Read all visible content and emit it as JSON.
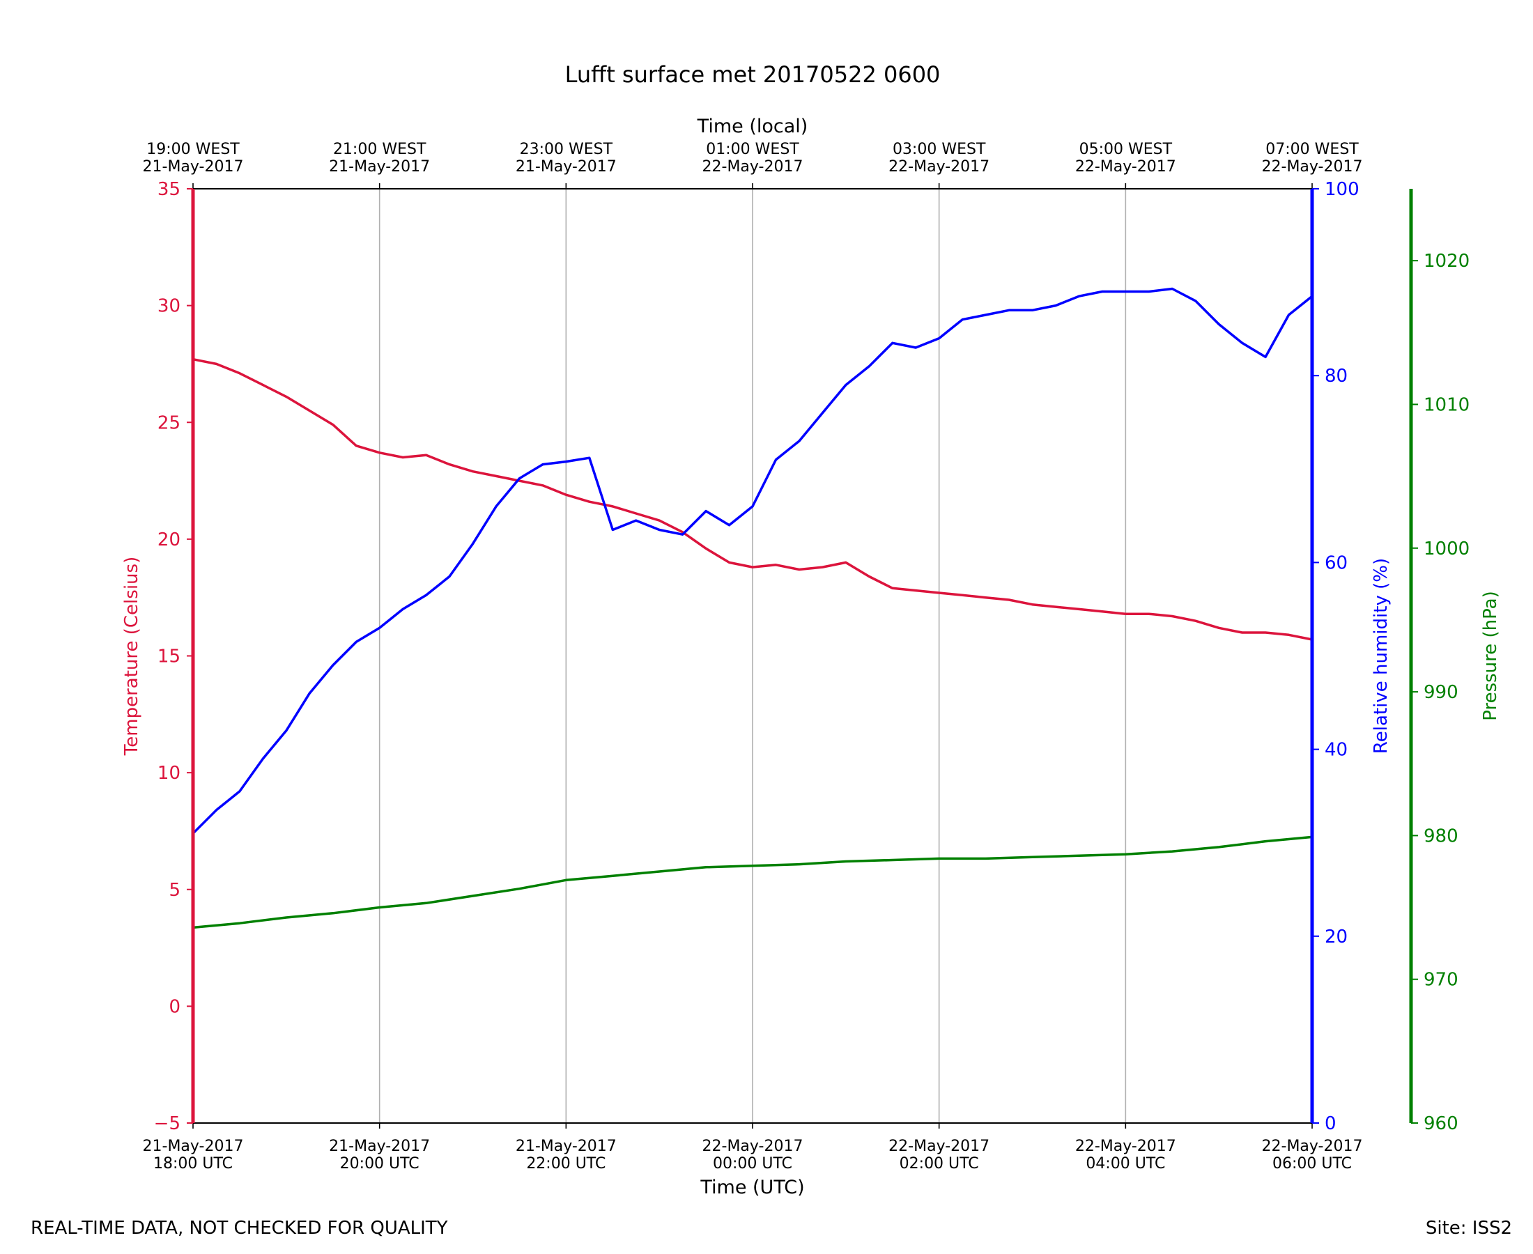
{
  "chart_data": {
    "type": "line",
    "title": "Lufft surface met 20170522 0600",
    "xlabel": "Time (UTC)",
    "x2label": "Time (local)",
    "x_ticks": [
      {
        "utc": [
          "21-May-2017",
          "18:00 UTC"
        ],
        "local": [
          "19:00 WEST",
          "21-May-2017"
        ]
      },
      {
        "utc": [
          "21-May-2017",
          "20:00 UTC"
        ],
        "local": [
          "21:00 WEST",
          "21-May-2017"
        ]
      },
      {
        "utc": [
          "21-May-2017",
          "22:00 UTC"
        ],
        "local": [
          "23:00 WEST",
          "21-May-2017"
        ]
      },
      {
        "utc": [
          "22-May-2017",
          "00:00 UTC"
        ],
        "local": [
          "01:00 WEST",
          "22-May-2017"
        ]
      },
      {
        "utc": [
          "22-May-2017",
          "02:00 UTC"
        ],
        "local": [
          "03:00 WEST",
          "22-May-2017"
        ]
      },
      {
        "utc": [
          "22-May-2017",
          "04:00 UTC"
        ],
        "local": [
          "05:00 WEST",
          "22-May-2017"
        ]
      },
      {
        "utc": [
          "22-May-2017",
          "06:00 UTC"
        ],
        "local": [
          "07:00 WEST",
          "22-May-2017"
        ]
      }
    ],
    "xlim": [
      "2017-05-21 18:00 UTC",
      "2017-05-22 06:00 UTC"
    ],
    "grid": "vertical",
    "axes": [
      {
        "id": "temperature",
        "label": "Temperature (Celsius)",
        "side": "left",
        "color": "#dc143c",
        "ylim": [
          -5,
          35
        ],
        "ticks": [
          -5,
          0,
          5,
          10,
          15,
          20,
          25,
          30,
          35
        ]
      },
      {
        "id": "humidity",
        "label": "Relative humidity (%)",
        "side": "right",
        "color": "#0000ff",
        "ylim": [
          0,
          100
        ],
        "ticks": [
          0,
          20,
          40,
          60,
          80,
          100
        ]
      },
      {
        "id": "pressure",
        "label": "Pressure (hPa)",
        "side": "right-outer",
        "color": "#008000",
        "ylim": [
          960,
          1025
        ],
        "ticks": [
          960,
          970,
          980,
          990,
          1000,
          1010,
          1020
        ]
      }
    ],
    "series": [
      {
        "axis": "temperature",
        "color": "#dc143c",
        "x": [
          "2017-05-21 18:00",
          "2017-05-21 18:15",
          "2017-05-21 18:30",
          "2017-05-21 18:45",
          "2017-05-21 19:00",
          "2017-05-21 19:15",
          "2017-05-21 19:30",
          "2017-05-21 19:45",
          "2017-05-21 20:00",
          "2017-05-21 20:15",
          "2017-05-21 20:30",
          "2017-05-21 20:45",
          "2017-05-21 21:00",
          "2017-05-21 21:15",
          "2017-05-21 21:30",
          "2017-05-21 21:45",
          "2017-05-21 22:00",
          "2017-05-21 22:15",
          "2017-05-21 22:30",
          "2017-05-21 22:45",
          "2017-05-21 23:00",
          "2017-05-21 23:15",
          "2017-05-21 23:30",
          "2017-05-21 23:45",
          "2017-05-22 00:00",
          "2017-05-22 00:15",
          "2017-05-22 00:30",
          "2017-05-22 00:45",
          "2017-05-22 01:00",
          "2017-05-22 01:15",
          "2017-05-22 01:30",
          "2017-05-22 01:45",
          "2017-05-22 02:00",
          "2017-05-22 02:15",
          "2017-05-22 02:30",
          "2017-05-22 02:45",
          "2017-05-22 03:00",
          "2017-05-22 03:15",
          "2017-05-22 03:30",
          "2017-05-22 03:45",
          "2017-05-22 04:00",
          "2017-05-22 04:15",
          "2017-05-22 04:30",
          "2017-05-22 04:45",
          "2017-05-22 05:00",
          "2017-05-22 05:15",
          "2017-05-22 05:30",
          "2017-05-22 05:45",
          "2017-05-22 06:00"
        ],
        "values": [
          27.7,
          27.5,
          27.1,
          26.6,
          26.1,
          25.5,
          24.9,
          24.0,
          23.7,
          23.5,
          23.6,
          23.2,
          22.9,
          22.7,
          22.5,
          22.3,
          21.9,
          21.6,
          21.4,
          21.1,
          20.8,
          20.3,
          19.6,
          19.0,
          18.8,
          18.9,
          18.7,
          18.8,
          19.0,
          18.4,
          17.9,
          17.8,
          17.7,
          17.6,
          17.5,
          17.4,
          17.2,
          17.1,
          17.0,
          16.9,
          16.8,
          16.8,
          16.7,
          16.5,
          16.2,
          16.0,
          16.0,
          15.9,
          15.7
        ]
      },
      {
        "axis": "humidity",
        "color": "#0000ff",
        "x": [
          "2017-05-21 18:00",
          "2017-05-21 18:15",
          "2017-05-21 18:30",
          "2017-05-21 18:45",
          "2017-05-21 19:00",
          "2017-05-21 19:15",
          "2017-05-21 19:30",
          "2017-05-21 19:45",
          "2017-05-21 20:00",
          "2017-05-21 20:15",
          "2017-05-21 20:30",
          "2017-05-21 20:45",
          "2017-05-21 21:00",
          "2017-05-21 21:15",
          "2017-05-21 21:30",
          "2017-05-21 21:45",
          "2017-05-21 22:00",
          "2017-05-21 22:15",
          "2017-05-21 22:30",
          "2017-05-21 22:45",
          "2017-05-21 23:00",
          "2017-05-21 23:15",
          "2017-05-21 23:30",
          "2017-05-21 23:45",
          "2017-05-22 00:00",
          "2017-05-22 00:15",
          "2017-05-22 00:30",
          "2017-05-22 00:45",
          "2017-05-22 01:00",
          "2017-05-22 01:15",
          "2017-05-22 01:30",
          "2017-05-22 01:45",
          "2017-05-22 02:00",
          "2017-05-22 02:15",
          "2017-05-22 02:30",
          "2017-05-22 02:45",
          "2017-05-22 03:00",
          "2017-05-22 03:15",
          "2017-05-22 03:30",
          "2017-05-22 03:45",
          "2017-05-22 04:00",
          "2017-05-22 04:15",
          "2017-05-22 04:30",
          "2017-05-22 04:45",
          "2017-05-22 05:00",
          "2017-05-22 05:15",
          "2017-05-22 05:30",
          "2017-05-22 05:45",
          "2017-05-22 06:00"
        ],
        "values": [
          31.0,
          33.5,
          35.5,
          39.0,
          42.0,
          46.0,
          49.0,
          51.5,
          53.0,
          55.0,
          56.5,
          58.5,
          62.0,
          66.0,
          69.0,
          70.5,
          70.8,
          71.2,
          63.5,
          64.5,
          63.5,
          63.0,
          65.5,
          64.0,
          66.0,
          71.0,
          73.0,
          76.0,
          79.0,
          81.0,
          83.5,
          83.0,
          84.0,
          86.0,
          86.5,
          87.0,
          87.0,
          87.5,
          88.5,
          89.0,
          89.0,
          89.0,
          89.3,
          88.0,
          85.5,
          83.5,
          82.0,
          86.5,
          88.5
        ]
      },
      {
        "axis": "pressure",
        "color": "#008000",
        "x": [
          "2017-05-21 18:00",
          "2017-05-21 18:30",
          "2017-05-21 19:00",
          "2017-05-21 19:30",
          "2017-05-21 20:00",
          "2017-05-21 20:30",
          "2017-05-21 21:00",
          "2017-05-21 21:30",
          "2017-05-21 22:00",
          "2017-05-21 22:30",
          "2017-05-21 23:00",
          "2017-05-21 23:30",
          "2017-05-22 00:00",
          "2017-05-22 00:30",
          "2017-05-22 01:00",
          "2017-05-22 01:30",
          "2017-05-22 02:00",
          "2017-05-22 02:30",
          "2017-05-22 03:00",
          "2017-05-22 03:30",
          "2017-05-22 04:00",
          "2017-05-22 04:30",
          "2017-05-22 05:00",
          "2017-05-22 05:30",
          "2017-05-22 06:00"
        ],
        "values": [
          973.6,
          973.9,
          974.3,
          974.6,
          975.0,
          975.3,
          975.8,
          976.3,
          976.9,
          977.2,
          977.5,
          977.8,
          977.9,
          978.0,
          978.2,
          978.3,
          978.4,
          978.4,
          978.5,
          978.6,
          978.7,
          978.9,
          979.2,
          979.6,
          979.9
        ]
      }
    ]
  },
  "footer": {
    "left": "REAL-TIME DATA, NOT CHECKED FOR QUALITY",
    "right": "Site: ISS2"
  }
}
